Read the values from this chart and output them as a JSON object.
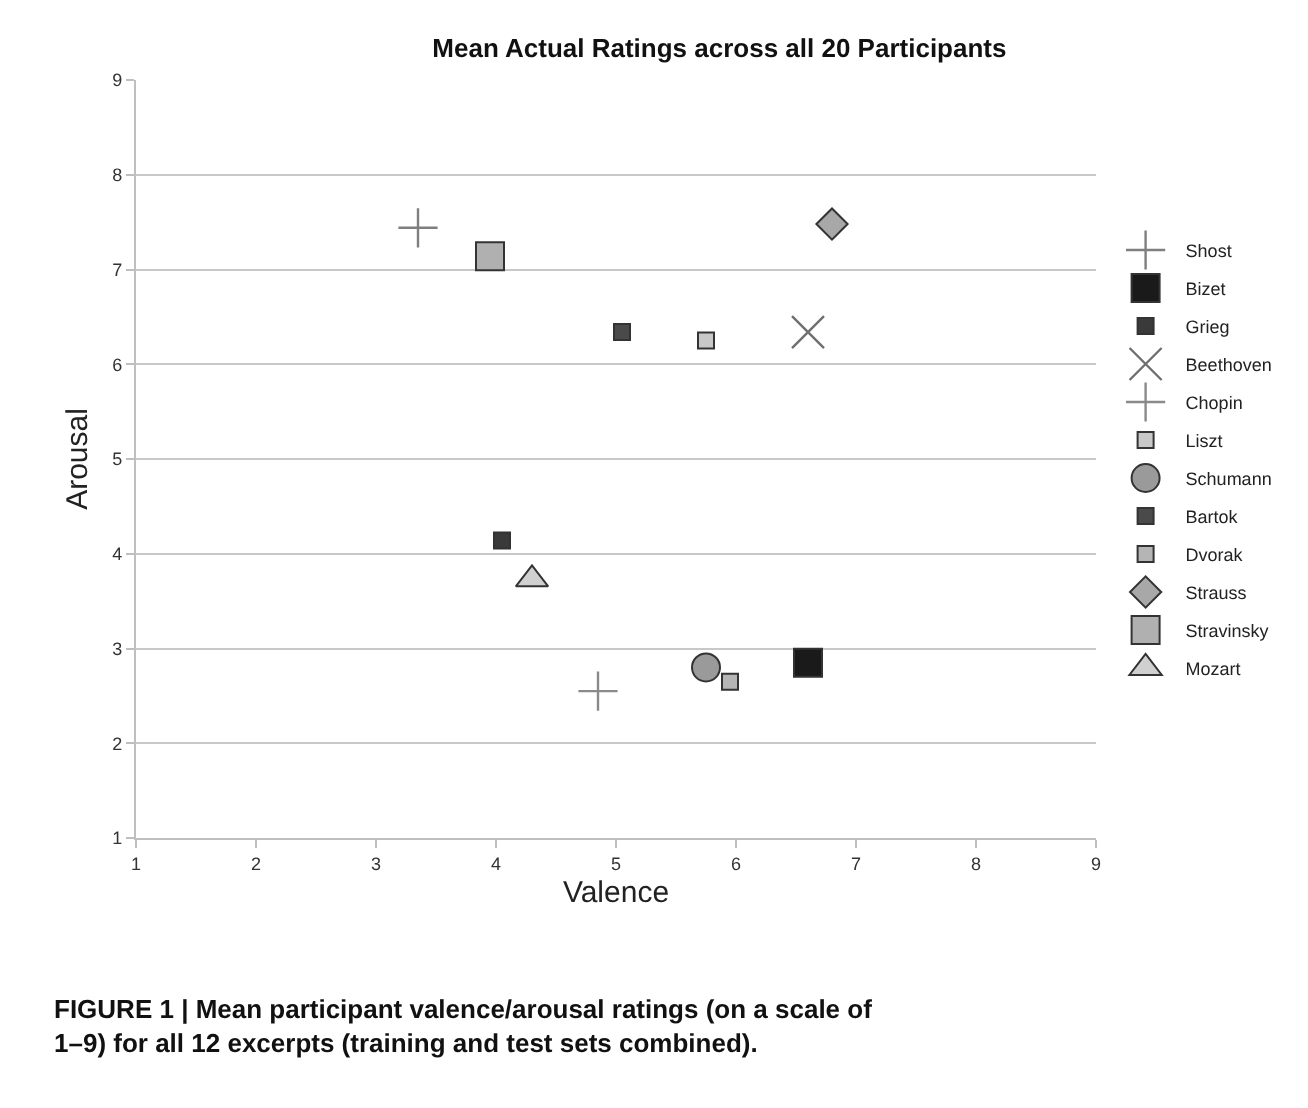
{
  "chart_data": {
    "type": "scatter",
    "title": "Mean Actual Ratings across all 20 Participants",
    "xlabel": "Valence",
    "ylabel": "Arousal",
    "xlim": [
      1,
      9
    ],
    "xticks": [
      1,
      2,
      3,
      4,
      5,
      6,
      7,
      8,
      9
    ],
    "ylim": [
      1,
      9
    ],
    "yticks": [
      1,
      2,
      3,
      4,
      5,
      6,
      7,
      8,
      9
    ],
    "grid": "y",
    "legend": "right",
    "series": [
      {
        "name": "Shost",
        "color": "#7f7f7f",
        "marker": "cross",
        "x": [
          3.35
        ],
        "values": [
          7.44
        ]
      },
      {
        "name": "Bizet",
        "color": "#1a1a1a",
        "marker": "square",
        "x": [
          6.6
        ],
        "values": [
          2.85
        ]
      },
      {
        "name": "Grieg",
        "color": "#3a3a3a",
        "marker": "square",
        "x": [
          4.05
        ],
        "values": [
          4.14
        ]
      },
      {
        "name": "Beethoven",
        "color": "#6f6f6f",
        "marker": "x",
        "x": [
          6.6
        ],
        "values": [
          6.34
        ]
      },
      {
        "name": "Chopin",
        "color": "#8a8a8a",
        "marker": "cross",
        "x": [
          4.85
        ],
        "values": [
          2.55
        ]
      },
      {
        "name": "Liszt",
        "color": "#c8c8c8",
        "marker": "square",
        "x": [
          5.75
        ],
        "values": [
          6.25
        ]
      },
      {
        "name": "Schumann",
        "color": "#9a9a9a",
        "marker": "circle",
        "x": [
          5.75
        ],
        "values": [
          2.8
        ]
      },
      {
        "name": "Bartok",
        "color": "#4a4a4a",
        "marker": "square",
        "x": [
          5.05
        ],
        "values": [
          6.34
        ]
      },
      {
        "name": "Dvorak",
        "color": "#b5b5b5",
        "marker": "square",
        "x": [
          5.95
        ],
        "values": [
          2.65
        ]
      },
      {
        "name": "Strauss",
        "color": "#a8a8a8",
        "marker": "diamond",
        "x": [
          6.8
        ],
        "values": [
          7.48
        ]
      },
      {
        "name": "Stravinsky",
        "color": "#b0b0b0",
        "marker": "square",
        "x": [
          3.95
        ],
        "values": [
          7.14
        ]
      },
      {
        "name": "Mozart",
        "color": "#d0d0d0",
        "marker": "triangle",
        "x": [
          4.3
        ],
        "values": [
          3.73
        ]
      }
    ],
    "annotations": [
      "FIGURE 1 | Mean participant valence/arousal ratings (on a scale of 1–9) for all 12 excerpts (training and test sets combined)."
    ]
  }
}
